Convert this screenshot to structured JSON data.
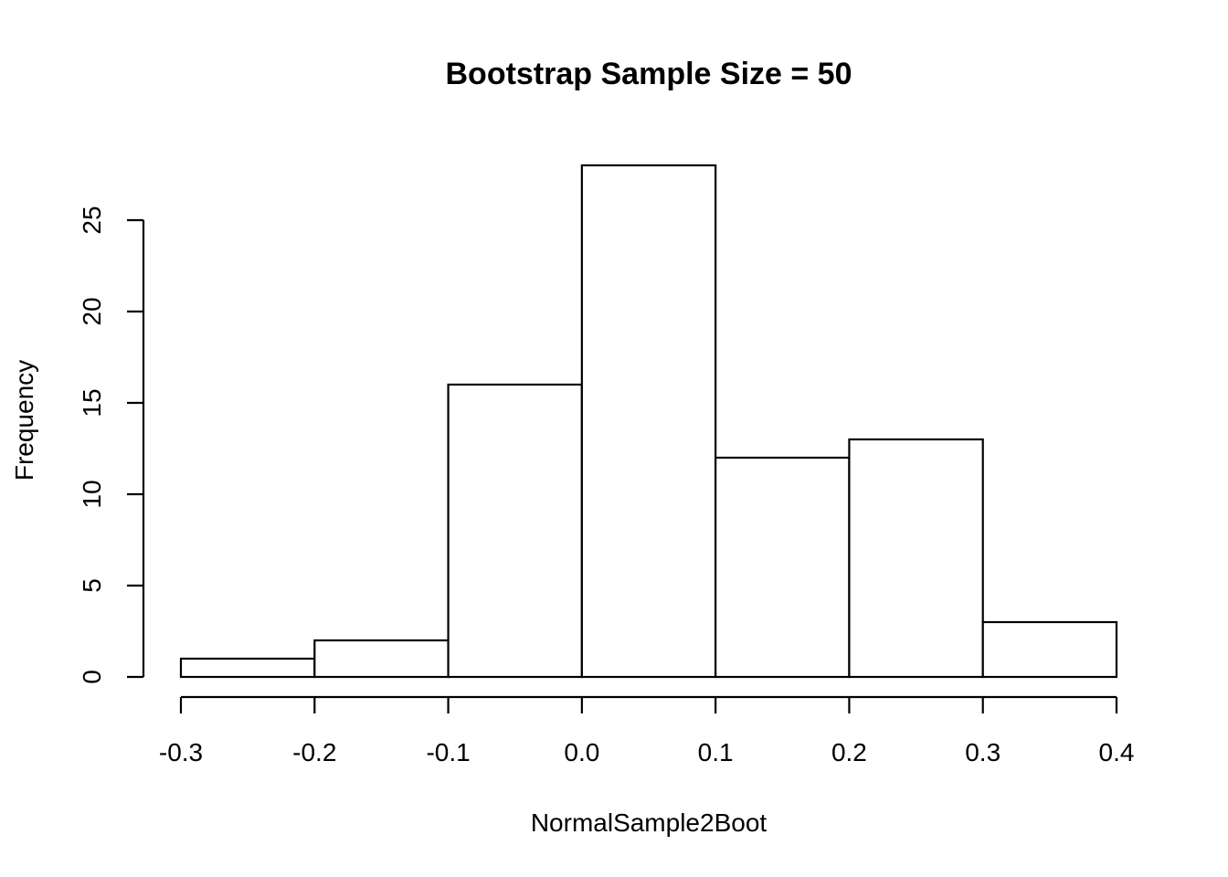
{
  "chart_data": {
    "type": "bar",
    "subtype": "histogram",
    "title": "Bootstrap Sample Size =  50",
    "xlabel": "NormalSample2Boot",
    "ylabel": "Frequency",
    "bins": [
      {
        "start": -0.3,
        "end": -0.2,
        "count": 1
      },
      {
        "start": -0.2,
        "end": -0.1,
        "count": 2
      },
      {
        "start": -0.1,
        "end": 0.0,
        "count": 16
      },
      {
        "start": 0.0,
        "end": 0.1,
        "count": 28
      },
      {
        "start": 0.1,
        "end": 0.2,
        "count": 12
      },
      {
        "start": 0.2,
        "end": 0.3,
        "count": 13
      },
      {
        "start": 0.3,
        "end": 0.4,
        "count": 3
      }
    ],
    "x_ticks": [
      "-0.3",
      "-0.2",
      "-0.1",
      "0.0",
      "0.1",
      "0.2",
      "0.3",
      "0.4"
    ],
    "x_tick_values": [
      -0.3,
      -0.2,
      -0.1,
      0.0,
      0.1,
      0.2,
      0.3,
      0.4
    ],
    "y_ticks": [
      "0",
      "5",
      "10",
      "15",
      "20",
      "25"
    ],
    "y_tick_values": [
      0,
      5,
      10,
      15,
      20,
      25
    ],
    "xlim": [
      -0.3,
      0.4
    ],
    "ylim": [
      0,
      28
    ],
    "grid": false,
    "legend": "none",
    "bar_fill": "#ffffff",
    "bar_stroke": "#000000"
  }
}
